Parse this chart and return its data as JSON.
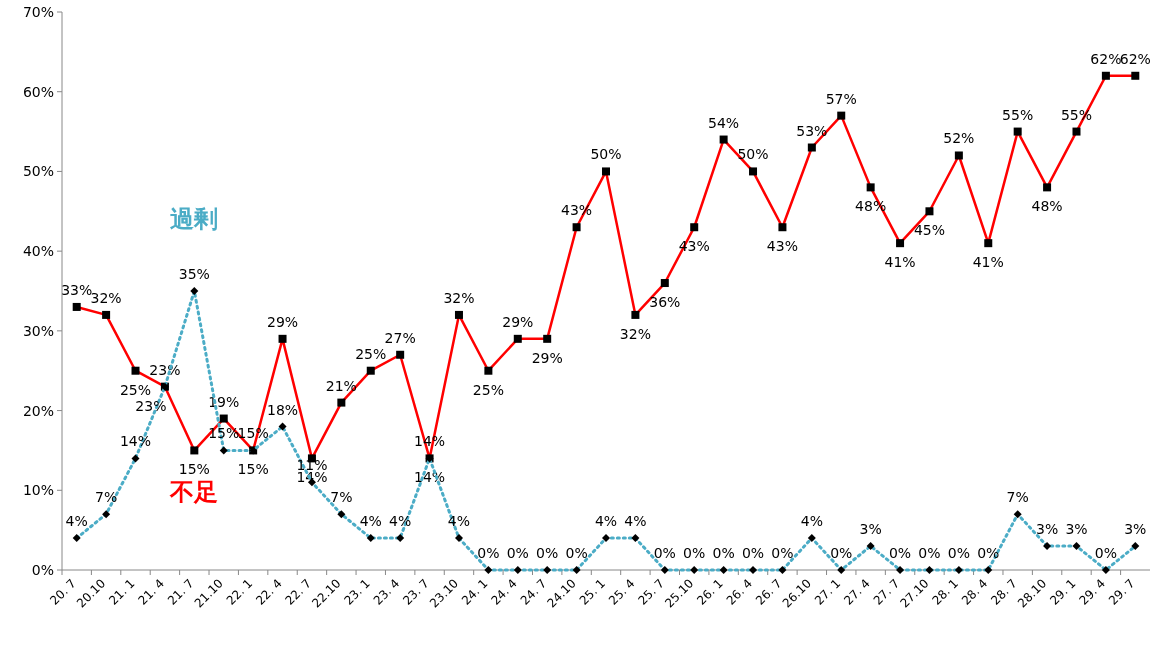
{
  "chart_data": {
    "type": "line",
    "categories": [
      "20. 7",
      "20.10",
      "21. 1",
      "21. 4",
      "21. 7",
      "21.10",
      "22. 1",
      "22. 4",
      "22. 7",
      "22.10",
      "23. 1",
      "23. 4",
      "23. 7",
      "23.10",
      "24. 1",
      "24. 4",
      "24. 7",
      "24.10",
      "25. 1",
      "25. 4",
      "25. 7",
      "25.10",
      "26. 1",
      "26. 4",
      "26. 7",
      "26.10",
      "27. 1",
      "27. 4",
      "27. 7",
      "27.10",
      "28. 1",
      "28. 4",
      "28. 7",
      "28.10",
      "29. 1",
      "29. 4",
      "29. 7"
    ],
    "ylim": [
      0,
      70
    ],
    "yticks": [
      {
        "value": 0,
        "label": "0%"
      },
      {
        "value": 10,
        "label": "10%"
      },
      {
        "value": 20,
        "label": "20%"
      },
      {
        "value": 30,
        "label": "30%"
      },
      {
        "value": 40,
        "label": "40%"
      },
      {
        "value": 50,
        "label": "50%"
      },
      {
        "value": 60,
        "label": "60%"
      },
      {
        "value": 70,
        "label": "70%"
      }
    ],
    "grid": false,
    "legend": false,
    "series": [
      {
        "name": "不足",
        "color": "#ff0000",
        "marker": "square",
        "line_style": "solid",
        "values": [
          33,
          32,
          25,
          23,
          15,
          19,
          15,
          29,
          14,
          21,
          25,
          27,
          14,
          32,
          25,
          29,
          29,
          43,
          50,
          32,
          36,
          43,
          54,
          50,
          43,
          53,
          57,
          48,
          41,
          45,
          52,
          41,
          55,
          48,
          55,
          62,
          62
        ],
        "value_labels": [
          "33%",
          "32%",
          "25%",
          "23%",
          "15%",
          "19%",
          "15%",
          "29%",
          "14%",
          "21%",
          "25%",
          "27%",
          "14%",
          "32%",
          "25%",
          "29%",
          "29%",
          "43%",
          "50%",
          "32%",
          "36%",
          "43%",
          "54%",
          "50%",
          "43%",
          "53%",
          "57%",
          "48%",
          "41%",
          "45%",
          "52%",
          "41%",
          "55%",
          "48%",
          "55%",
          "62%",
          "62%"
        ]
      },
      {
        "name": "過剰",
        "color": "#4bacc6",
        "marker": "diamond",
        "line_style": "dotted",
        "values": [
          4,
          7,
          14,
          23,
          35,
          15,
          15,
          18,
          11,
          7,
          4,
          4,
          14,
          4,
          0,
          0,
          0,
          0,
          4,
          4,
          0,
          0,
          0,
          0,
          0,
          4,
          0,
          3,
          0,
          0,
          0,
          0,
          7,
          3,
          3,
          0,
          3
        ],
        "value_labels": [
          "4%",
          "7%",
          "14%",
          "23%",
          "35%",
          "15%",
          "15%",
          "18%",
          "11%",
          "7%",
          "4%",
          "4%",
          "14%",
          "4%",
          "0%",
          "0%",
          "0%",
          "0%",
          "4%",
          "4%",
          "0%",
          "0%",
          "0%",
          "0%",
          "0%",
          "4%",
          "0%",
          "3%",
          "0%",
          "0%",
          "0%",
          "0%",
          "7%",
          "3%",
          "3%",
          "0%",
          "3%"
        ]
      }
    ]
  }
}
